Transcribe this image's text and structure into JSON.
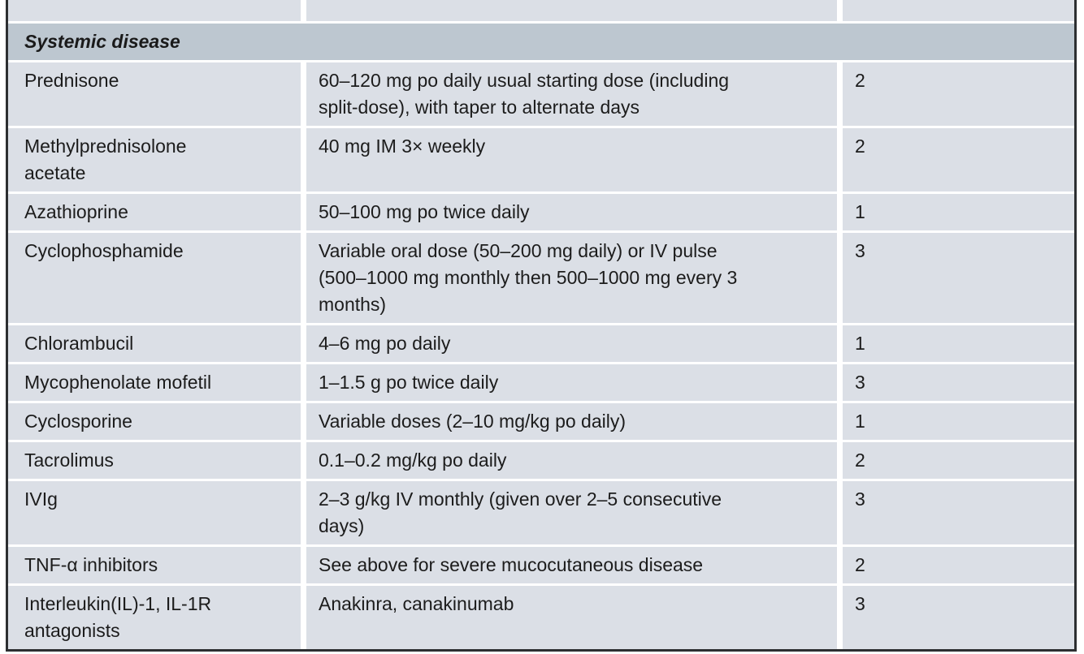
{
  "palette": {
    "row_background": "#dbdfe6",
    "section_header_background": "#bdc7d0",
    "outer_border": "#2d2f31",
    "text": "#1c1c1c",
    "divider": "#ffffff"
  },
  "table": {
    "section_header": "Systemic disease",
    "columns": [
      "therapy",
      "dose",
      "grade"
    ],
    "rows": [
      {
        "therapy": "Prednisone",
        "dose": "60–120 mg po daily usual starting dose (including\nsplit-dose), with taper to alternate days",
        "grade": "2"
      },
      {
        "therapy": "Methylprednisolone\nacetate",
        "dose": "40 mg IM 3× weekly",
        "grade": "2"
      },
      {
        "therapy": "Azathioprine",
        "dose": "50–100 mg po twice daily",
        "grade": "1"
      },
      {
        "therapy": "Cyclophosphamide",
        "dose": "Variable oral dose (50–200 mg daily) or IV pulse\n(500–1000 mg monthly then 500–1000 mg every 3\nmonths)",
        "grade": "3"
      },
      {
        "therapy": "Chlorambucil",
        "dose": "4–6 mg po daily",
        "grade": "1"
      },
      {
        "therapy": "Mycophenolate mofetil",
        "dose": "1–1.5 g po twice daily",
        "grade": "3"
      },
      {
        "therapy": "Cyclosporine",
        "dose": "Variable doses (2–10 mg/kg po daily)",
        "grade": "1"
      },
      {
        "therapy": "Tacrolimus",
        "dose": "0.1–0.2 mg/kg po daily",
        "grade": "2"
      },
      {
        "therapy": "IVIg",
        "dose": "2–3 g/kg IV monthly (given over 2–5 consecutive\ndays)",
        "grade": "3"
      },
      {
        "therapy": "TNF-α inhibitors",
        "dose": "See above for severe mucocutaneous disease",
        "grade": "2"
      },
      {
        "therapy": "Interleukin(IL)-1, IL-1R\nantagonists",
        "dose": "Anakinra, canakinumab",
        "grade": "3"
      }
    ]
  }
}
